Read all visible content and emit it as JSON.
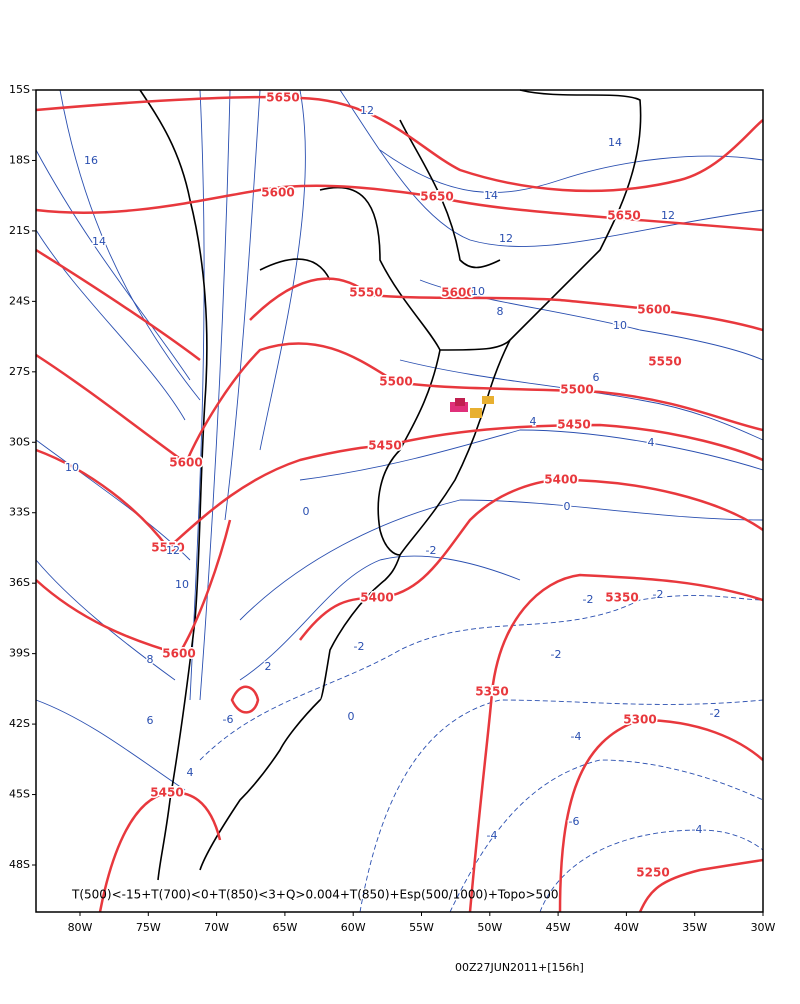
{
  "map": {
    "lat_ticks": [
      "15S",
      "18S",
      "21S",
      "24S",
      "27S",
      "30S",
      "33S",
      "36S",
      "39S",
      "42S",
      "45S",
      "48S"
    ],
    "lon_ticks": [
      "80W",
      "75W",
      "70W",
      "65W",
      "60W",
      "55W",
      "50W",
      "45W",
      "40W",
      "35W",
      "30W"
    ],
    "caption": "T(500)<-15+T(700)<0+T(850)<3+Q>0.004+T(850)+Esp(500/1000)+Topo>500",
    "timestamp": "00Z27JUN2011+[156h]",
    "thickness_labels": [
      5650,
      5600,
      5650,
      5650,
      5550,
      5600,
      5600,
      5550,
      5500,
      5500,
      5450,
      5450,
      5600,
      5400,
      5550,
      5400,
      5350,
      5600,
      5350,
      5300,
      5450,
      5250
    ],
    "temperature_labels": [
      16,
      14,
      12,
      14,
      14,
      12,
      12,
      10,
      10,
      8,
      6,
      4,
      4,
      10,
      0,
      -2,
      12,
      10,
      8,
      -2,
      -2,
      -2,
      -2,
      6,
      -6,
      0,
      -2,
      -4,
      -4,
      -6,
      -4,
      2,
      0,
      4
    ]
  }
}
